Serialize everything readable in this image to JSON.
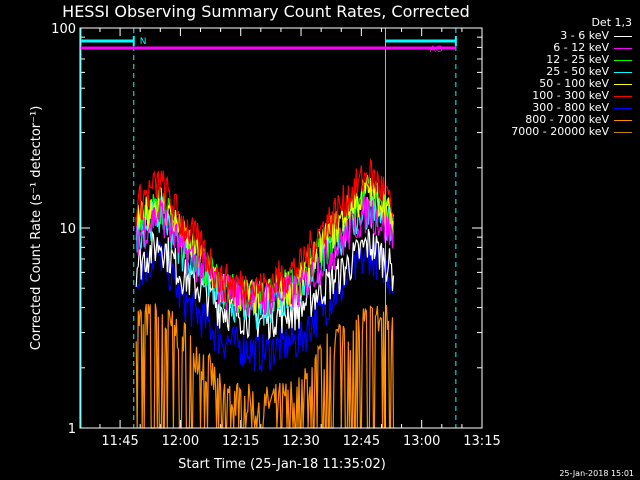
{
  "chart_data": {
    "type": "line",
    "title": "HESSI Observing Summary Count Rates, Corrected",
    "xlabel": "Start Time (25-Jan-18 11:35:02)",
    "ylabel": "Corrected Count Rate (s⁻¹ detector⁻¹)",
    "xlim": [
      "11:35",
      "13:15"
    ],
    "ylim": [
      1,
      100
    ],
    "yscale": "log",
    "x_ticks": [
      "11:45",
      "12:00",
      "12:15",
      "12:30",
      "12:45",
      "13:00",
      "13:15"
    ],
    "y_ticks": [
      "1",
      "10",
      "100"
    ],
    "legend_title": "Det 1,3",
    "legend_position": "right outside",
    "series": [
      {
        "name": "3 - 6 keV",
        "color": "#ffffff",
        "x": [
          "11:49",
          "11:55",
          "12:00",
          "12:10",
          "12:20",
          "12:30",
          "12:40",
          "12:47",
          "12:51",
          "12:53"
        ],
        "y": [
          6.5,
          8.5,
          6.0,
          4.0,
          3.5,
          4.0,
          6.0,
          8.5,
          7.0,
          6.0
        ]
      },
      {
        "name": "6 - 12 keV",
        "color": "#ff00ff",
        "x": [
          "11:49",
          "11:55",
          "12:00",
          "12:10",
          "12:20",
          "12:30",
          "12:40",
          "12:47",
          "12:51",
          "12:53"
        ],
        "y": [
          9.0,
          12.0,
          8.0,
          5.0,
          4.5,
          5.0,
          8.5,
          12.5,
          10.0,
          9.0
        ]
      },
      {
        "name": "12 - 25 keV",
        "color": "#00ff00",
        "x": [
          "11:49",
          "11:55",
          "12:00",
          "12:10",
          "12:20",
          "12:30",
          "12:40",
          "12:47",
          "12:51",
          "12:53"
        ],
        "y": [
          10.0,
          13.5,
          9.0,
          5.0,
          4.5,
          5.5,
          10.0,
          15.5,
          12.0,
          10.0
        ]
      },
      {
        "name": "25 - 50 keV",
        "color": "#00ffff",
        "x": [
          "11:49",
          "11:55",
          "12:00",
          "12:10",
          "12:20",
          "12:30",
          "12:40",
          "12:47",
          "12:51",
          "12:53"
        ],
        "y": [
          9.5,
          12.0,
          8.0,
          4.5,
          4.0,
          5.0,
          9.0,
          13.0,
          11.0,
          9.5
        ]
      },
      {
        "name": "50 - 100 keV",
        "color": "#ffff00",
        "x": [
          "11:49",
          "11:55",
          "12:00",
          "12:10",
          "12:20",
          "12:30",
          "12:40",
          "12:47",
          "12:51",
          "12:53"
        ],
        "y": [
          10.5,
          14.0,
          9.5,
          5.0,
          4.5,
          5.5,
          11.0,
          16.0,
          13.0,
          10.0
        ]
      },
      {
        "name": "100 - 300 keV",
        "color": "#ff0000",
        "x": [
          "11:49",
          "11:55",
          "12:00",
          "12:10",
          "12:20",
          "12:30",
          "12:40",
          "12:47",
          "12:51",
          "12:53"
        ],
        "y": [
          13.0,
          17.0,
          11.0,
          5.5,
          5.0,
          6.5,
          13.0,
          19.0,
          15.0,
          11.0
        ]
      },
      {
        "name": "300 - 800 keV",
        "color": "#0000ff",
        "x": [
          "11:49",
          "11:55",
          "12:00",
          "12:10",
          "12:20",
          "12:30",
          "12:40",
          "12:47",
          "12:51",
          "12:53"
        ],
        "y": [
          6.0,
          7.5,
          4.5,
          2.8,
          2.4,
          2.8,
          5.0,
          7.5,
          6.5,
          5.0
        ]
      },
      {
        "name": "800 - 7000 keV",
        "color": "#ff8c00",
        "x": [
          "11:49",
          "11:55",
          "12:00",
          "12:10",
          "12:20",
          "12:30",
          "12:40",
          "12:47",
          "12:51",
          "12:53"
        ],
        "y": [
          3.5,
          3.5,
          3.0,
          1.5,
          1.3,
          1.5,
          3.0,
          3.5,
          3.5,
          3.0
        ]
      },
      {
        "name": "7000 - 20000 keV",
        "color": "#b8860b",
        "x": [],
        "y": []
      }
    ],
    "annotations": [
      {
        "text": "N",
        "color": "#00ffff"
      },
      {
        "text": "AO",
        "color": "#ff00ff"
      }
    ],
    "footer": "25-Jan-2018 15:01"
  }
}
